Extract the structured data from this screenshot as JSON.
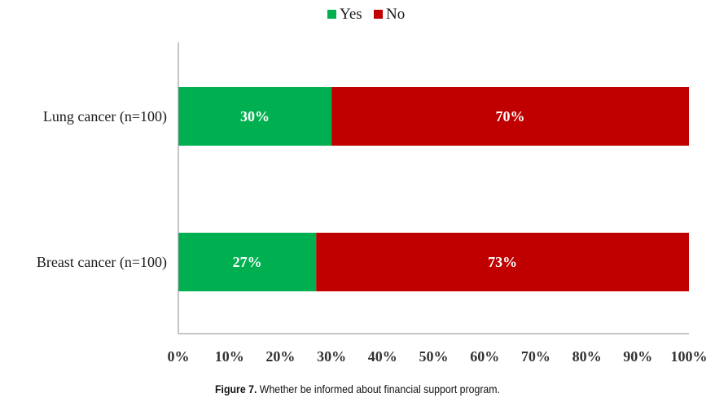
{
  "chart_data": {
    "type": "bar",
    "orientation": "horizontal",
    "stacked": true,
    "percent": true,
    "categories": [
      "Lung cancer (n=100)",
      "Breast cancer (n=100)"
    ],
    "series": [
      {
        "name": "Yes",
        "values": [
          30,
          27
        ],
        "labels": [
          "30%",
          "27%"
        ],
        "color": "#00b050"
      },
      {
        "name": "No",
        "values": [
          70,
          73
        ],
        "labels": [
          "70%",
          "73%"
        ],
        "color": "#c00000"
      }
    ],
    "xlim": [
      0,
      100
    ],
    "xticks": [
      0,
      10,
      20,
      30,
      40,
      50,
      60,
      70,
      80,
      90,
      100
    ],
    "xtick_labels": [
      "0%",
      "10%",
      "20%",
      "30%",
      "40%",
      "50%",
      "60%",
      "70%",
      "80%",
      "90%",
      "100%"
    ],
    "legend_position": "top",
    "grid": false
  },
  "caption": {
    "label": "Figure 7.",
    "text": " Whether be informed about financial support program."
  }
}
